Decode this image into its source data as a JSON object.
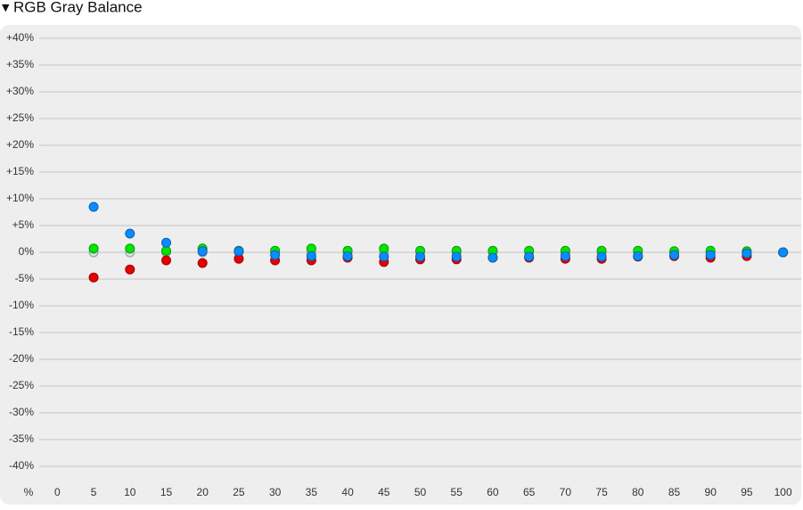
{
  "chart_data": {
    "type": "scatter",
    "title": "RGB Gray Balance",
    "x_label": "%",
    "x": [
      5,
      10,
      15,
      20,
      25,
      30,
      35,
      40,
      45,
      50,
      55,
      60,
      65,
      70,
      75,
      80,
      85,
      90,
      95,
      100
    ],
    "xlim": [
      -2.5,
      102.5
    ],
    "xticks": [
      0,
      5,
      10,
      15,
      20,
      25,
      30,
      35,
      40,
      45,
      50,
      55,
      60,
      65,
      70,
      75,
      80,
      85,
      90,
      95,
      100
    ],
    "ylim": [
      -40,
      40
    ],
    "yticks": [
      {
        "value": 40,
        "label": "+40%"
      },
      {
        "value": 35,
        "label": "+35%"
      },
      {
        "value": 30,
        "label": "+30%"
      },
      {
        "value": 25,
        "label": "+25%"
      },
      {
        "value": 20,
        "label": "+20%"
      },
      {
        "value": 15,
        "label": "+15%"
      },
      {
        "value": 10,
        "label": "+10%"
      },
      {
        "value": 5,
        "label": "+5%"
      },
      {
        "value": 0,
        "label": "0%"
      },
      {
        "value": -5,
        "label": "-5%"
      },
      {
        "value": -10,
        "label": "-10%"
      },
      {
        "value": -15,
        "label": "-15%"
      },
      {
        "value": -20,
        "label": "-20%"
      },
      {
        "value": -25,
        "label": "-25%"
      },
      {
        "value": -30,
        "label": "-30%"
      },
      {
        "value": -35,
        "label": "-35%"
      },
      {
        "value": -40,
        "label": "-40%"
      }
    ],
    "grid": true,
    "series": [
      {
        "color": "#dcdcdc",
        "values": [
          0,
          0,
          0,
          0,
          0,
          0,
          0,
          0,
          0,
          0,
          0,
          0,
          0,
          0,
          0,
          0,
          0,
          0,
          0,
          0
        ]
      },
      {
        "color": "#e60000",
        "values": [
          -4.7,
          -3.2,
          -1.5,
          -2.0,
          -1.2,
          -1.5,
          -1.5,
          -1.0,
          -1.8,
          -1.3,
          -1.3,
          -1.0,
          -1.0,
          -1.2,
          -1.2,
          -0.8,
          -0.7,
          -1.0,
          -0.7,
          0
        ]
      },
      {
        "color": "#00e600",
        "values": [
          0.7,
          0.7,
          0.3,
          0.7,
          0.3,
          0.3,
          0.7,
          0.3,
          0.7,
          0.3,
          0.3,
          0.3,
          0.3,
          0.3,
          0.3,
          0.3,
          0.2,
          0.3,
          0.2,
          0
        ]
      },
      {
        "color": "#0a8cff",
        "values": [
          8.5,
          3.5,
          1.8,
          0.2,
          0.2,
          -0.5,
          -0.7,
          -0.7,
          -0.8,
          -0.8,
          -0.8,
          -1.0,
          -0.8,
          -0.7,
          -0.8,
          -0.7,
          -0.5,
          -0.5,
          -0.2,
          0
        ]
      }
    ]
  }
}
